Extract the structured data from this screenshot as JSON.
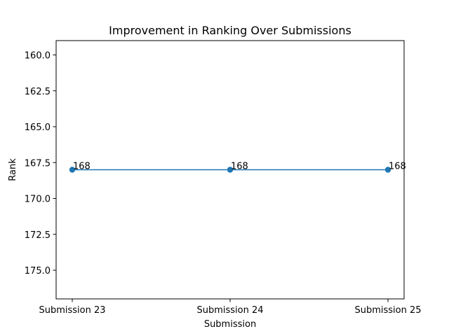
{
  "chart_data": {
    "type": "line",
    "title": "Improvement in Ranking Over Submissions",
    "xlabel": "Submission",
    "ylabel": "Rank",
    "categories": [
      "Submission 23",
      "Submission 24",
      "Submission 25"
    ],
    "series": [
      {
        "values": [
          168,
          168,
          168
        ],
        "color": "#1f77b4"
      }
    ],
    "data_labels": [
      "168",
      "168",
      "168"
    ],
    "ylim": [
      159,
      177
    ],
    "y_inverted": true,
    "y_ticks": [
      160,
      162.5,
      165,
      167.5,
      170,
      172.5,
      175
    ],
    "y_tick_labels": [
      "160.0",
      "162.5",
      "165.0",
      "167.5",
      "170.0",
      "172.5",
      "175.0"
    ],
    "grid": false,
    "legend": "none"
  }
}
